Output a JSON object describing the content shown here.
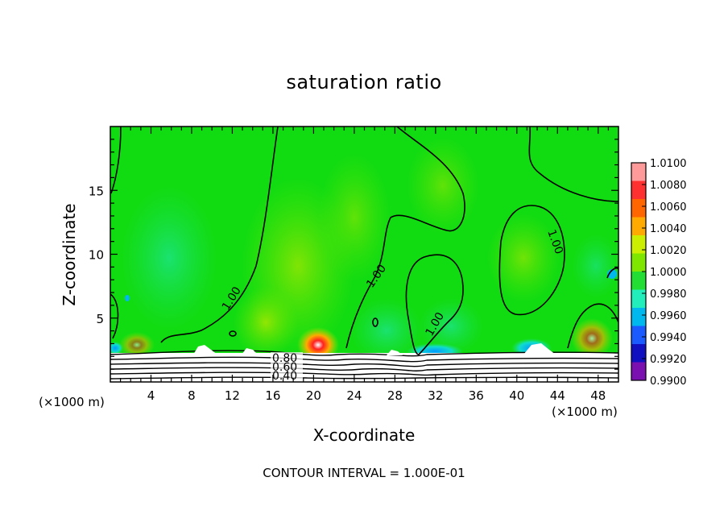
{
  "chart_data": {
    "type": "heatmap",
    "title": "saturation ratio",
    "xlabel": "X-coordinate",
    "ylabel": "Z-coordinate",
    "x_unit": "(×1000 m)",
    "y_unit": "(×1000 m)",
    "xlim": [
      0,
      50
    ],
    "ylim": [
      0,
      20
    ],
    "x_ticks": [
      "4",
      "8",
      "12",
      "16",
      "20",
      "24",
      "28",
      "32",
      "36",
      "40",
      "44",
      "48"
    ],
    "y_ticks": [
      "5",
      "10",
      "15"
    ],
    "contour_interval_text": "CONTOUR INTERVAL = 1.000E-01",
    "contour_labels": [
      "1.00",
      "1.00",
      "1.00",
      "1.00",
      "0.80",
      "0.60",
      "0.40"
    ],
    "colorbar": {
      "labels": [
        "1.0100",
        "1.0080",
        "1.0060",
        "1.0040",
        "1.0020",
        "1.0000",
        "0.9980",
        "0.9960",
        "0.9940",
        "0.9920",
        "0.9900"
      ],
      "colors": [
        "#ff9a9a",
        "#ff3030",
        "#ff6600",
        "#ffaa00",
        "#ccee00",
        "#7fe600",
        "#22dd33",
        "#22eebb",
        "#00b8ee",
        "#1a5aff",
        "#1010c0",
        "#7a10b0"
      ]
    }
  }
}
